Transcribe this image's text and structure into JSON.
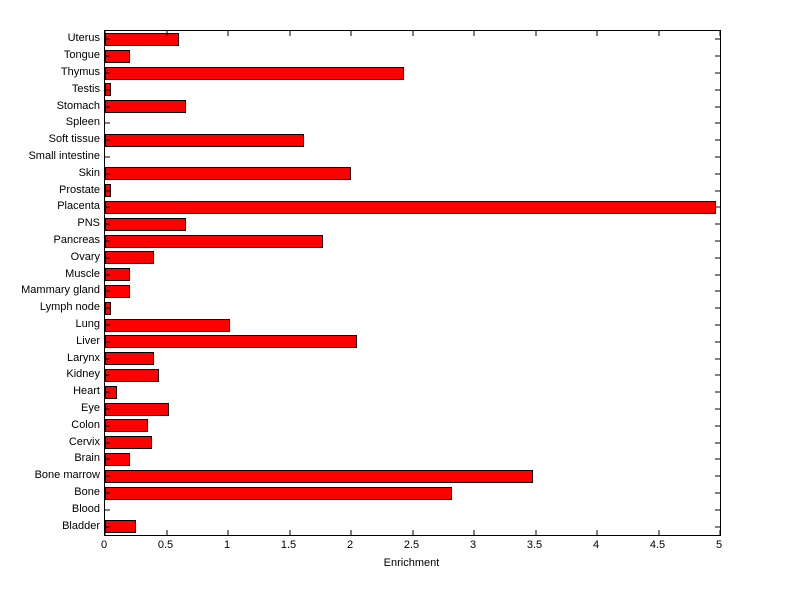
{
  "chart_data": {
    "type": "bar",
    "orientation": "horizontal",
    "title": "",
    "xlabel": "Enrichment",
    "ylabel": "",
    "xlim": [
      0,
      5
    ],
    "xticks": [
      0,
      0.5,
      1,
      1.5,
      2,
      2.5,
      3,
      3.5,
      4,
      4.5,
      5
    ],
    "xtick_labels": [
      "0",
      "0.5",
      "1",
      "1.5",
      "2",
      "2.5",
      "3",
      "3.5",
      "4",
      "4.5",
      "5"
    ],
    "grid": false,
    "bar_color": "#ff0000",
    "bar_edge_color": "#000000",
    "background_color": "#ffffff",
    "axis_color": "#000000",
    "categories": [
      "Uterus",
      "Tongue",
      "Thymus",
      "Testis",
      "Stomach",
      "Spleen",
      "Soft tissue",
      "Small intestine",
      "Skin",
      "Prostate",
      "Placenta",
      "PNS",
      "Pancreas",
      "Ovary",
      "Muscle",
      "Mammary gland",
      "Lymph node",
      "Lung",
      "Liver",
      "Larynx",
      "Kidney",
      "Heart",
      "Eye",
      "Colon",
      "Cervix",
      "Brain",
      "Bone marrow",
      "Bone",
      "Blood",
      "Bladder"
    ],
    "values": [
      0.6,
      0.2,
      2.43,
      0.05,
      0.66,
      0,
      1.62,
      0,
      2.0,
      0.05,
      4.97,
      0.66,
      1.77,
      0.4,
      0.2,
      0.2,
      0.05,
      1.02,
      2.05,
      0.4,
      0.44,
      0.1,
      0.52,
      0.35,
      0.38,
      0.2,
      3.48,
      2.82,
      0,
      0.25
    ]
  }
}
